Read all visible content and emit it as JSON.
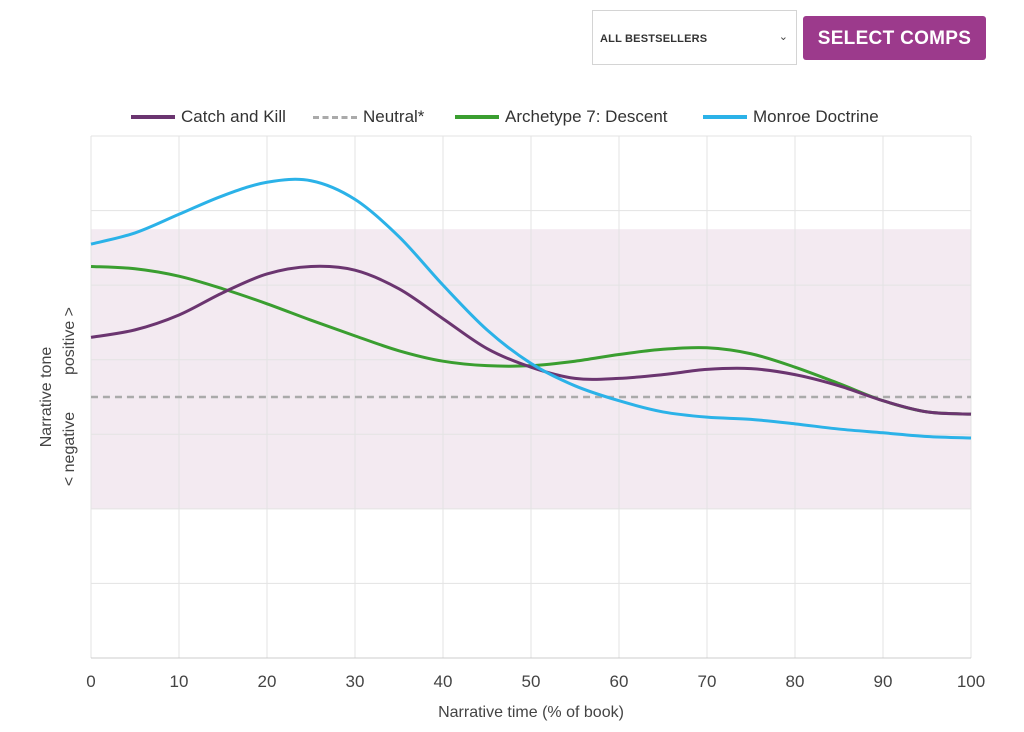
{
  "controls": {
    "select_label": "ALL BESTSELLERS",
    "button_label": "SELECT COMPS",
    "button_color": "#9c3a8c"
  },
  "chart_data": {
    "type": "line",
    "xlabel": "Narrative time (% of book)",
    "ylabel_top": "Narrative tone",
    "ylabel_neg": "< negative",
    "ylabel_pos": "positive >",
    "xlim": [
      0,
      100
    ],
    "xticks": [
      0,
      10,
      20,
      30,
      40,
      50,
      60,
      70,
      80,
      90,
      100
    ],
    "ylim": [
      -3.5,
      3.5
    ],
    "grid": true,
    "legend_position": "top",
    "band": {
      "range": [
        -1.5,
        2.25
      ],
      "color": "#f3eaf1"
    },
    "series": [
      {
        "name": "Catch and Kill",
        "color": "#6b3570",
        "dash": false,
        "x": [
          0,
          5,
          10,
          15,
          20,
          25,
          30,
          35,
          40,
          45,
          50,
          55,
          60,
          65,
          70,
          75,
          80,
          85,
          90,
          95,
          100
        ],
        "y": [
          0.8,
          0.9,
          1.1,
          1.4,
          1.65,
          1.75,
          1.7,
          1.45,
          1.05,
          0.65,
          0.4,
          0.25,
          0.25,
          0.3,
          0.37,
          0.38,
          0.3,
          0.15,
          -0.05,
          -0.2,
          -0.23
        ]
      },
      {
        "name": "Neutral*",
        "color": "#aaaaaa",
        "dash": true,
        "x": [
          0,
          100
        ],
        "y": [
          0,
          0
        ]
      },
      {
        "name": "Archetype 7: Descent",
        "color": "#3a9e30",
        "dash": false,
        "x": [
          0,
          5,
          10,
          15,
          20,
          25,
          30,
          35,
          40,
          45,
          50,
          55,
          60,
          65,
          70,
          75,
          80,
          85,
          90,
          95,
          100
        ],
        "y": [
          1.75,
          1.72,
          1.62,
          1.45,
          1.25,
          1.03,
          0.82,
          0.62,
          0.48,
          0.42,
          0.42,
          0.48,
          0.57,
          0.64,
          0.66,
          0.58,
          0.4,
          0.18,
          -0.05,
          -0.2,
          -0.23
        ]
      },
      {
        "name": "Monroe Doctrine",
        "color": "#2bb2e8",
        "dash": false,
        "x": [
          0,
          5,
          10,
          15,
          20,
          25,
          30,
          35,
          40,
          45,
          50,
          55,
          60,
          65,
          70,
          75,
          80,
          85,
          90,
          95,
          100
        ],
        "y": [
          2.05,
          2.2,
          2.45,
          2.7,
          2.88,
          2.9,
          2.65,
          2.15,
          1.5,
          0.9,
          0.45,
          0.15,
          -0.05,
          -0.2,
          -0.27,
          -0.3,
          -0.36,
          -0.43,
          -0.48,
          -0.53,
          -0.55
        ]
      }
    ]
  }
}
